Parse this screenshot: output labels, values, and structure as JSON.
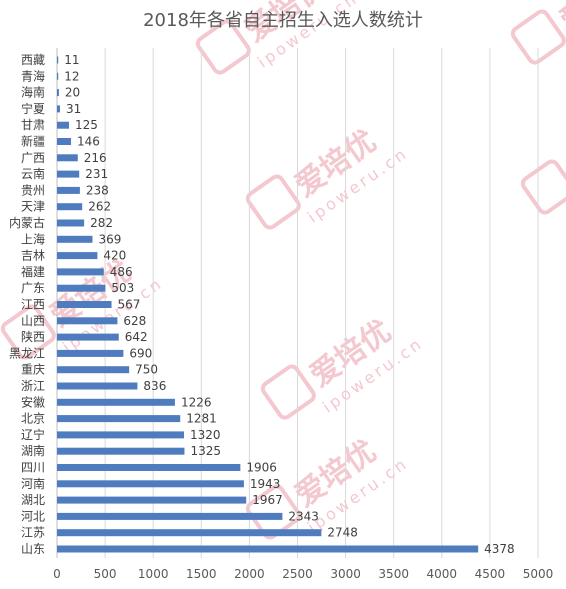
{
  "chart_data": {
    "type": "bar",
    "orientation": "horizontal",
    "title": "2018年各省自主招生入选人数统计",
    "xlabel": "",
    "ylabel": "",
    "xlim": [
      0,
      5000
    ],
    "x_ticks": [
      "0",
      "500",
      "1000",
      "1500",
      "2000",
      "2500",
      "3000",
      "3500",
      "4000",
      "4500",
      "5000"
    ],
    "grid": true,
    "categories": [
      "西藏",
      "青海",
      "海南",
      "宁夏",
      "甘肃",
      "新疆",
      "广西",
      "云南",
      "贵州",
      "天津",
      "内蒙古",
      "上海",
      "吉林",
      "福建",
      "广东",
      "江西",
      "山西",
      "陕西",
      "黑龙江",
      "重庆",
      "浙江",
      "安徽",
      "北京",
      "辽宁",
      "湖南",
      "四川",
      "河南",
      "湖北",
      "河北",
      "江苏",
      "山东"
    ],
    "values": [
      11,
      12,
      20,
      31,
      125,
      146,
      216,
      231,
      238,
      262,
      282,
      369,
      420,
      486,
      503,
      567,
      628,
      642,
      690,
      750,
      836,
      1226,
      1281,
      1320,
      1325,
      1906,
      1943,
      1967,
      2343,
      2748,
      4378
    ],
    "bar_color": "#4f7cbf"
  },
  "watermark": {
    "brand": "爱培优",
    "url": "ipoweru.cn",
    "color": "#f4c8cf"
  }
}
